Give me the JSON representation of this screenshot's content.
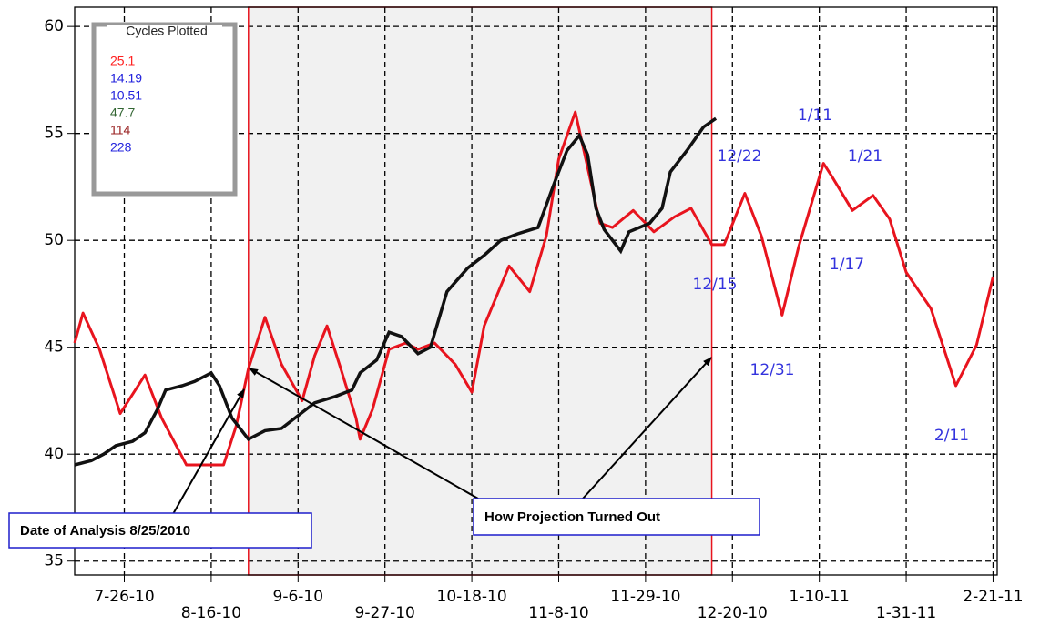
{
  "chart_data": {
    "type": "line",
    "xlim": [
      "7-14-10",
      "2-22-11"
    ],
    "ylim": [
      34.35,
      60.9
    ],
    "xticks": [
      "7-26-10",
      "8-16-10",
      "9-6-10",
      "9-27-10",
      "10-18-10",
      "11-8-10",
      "11-29-10",
      "12-20-10",
      "1-10-11",
      "1-31-11",
      "2-21-11"
    ],
    "yticks": [
      35,
      40,
      45,
      50,
      55,
      60
    ],
    "grid": true,
    "shaded_range": [
      "8-25-10",
      "12-15-10"
    ],
    "series": [
      {
        "color": "#e8141e",
        "x": [
          "7-14-10",
          "7-16-10",
          "7-20-10",
          "7-25-10",
          "7-31-10",
          "8-4-10",
          "8-10-10",
          "8-19-10",
          "8-22-10",
          "8-25-10",
          "8-29-10",
          "9-2-10",
          "9-7-10",
          "9-10-10",
          "9-13-10",
          "9-16-10",
          "9-20-10",
          "9-21-10",
          "9-24-10",
          "9-28-10",
          "10-2-10",
          "10-5-10",
          "10-9-10",
          "10-14-10",
          "10-18-10",
          "10-21-10",
          "10-27-10",
          "11-1-10",
          "11-5-10",
          "11-8-10",
          "11-12-10",
          "11-15-10",
          "11-18-10",
          "11-21-10",
          "11-26-10",
          "12-1-10",
          "12-6-10",
          "12-10-10",
          "12-15-10",
          "12-18-10",
          "12-23-10",
          "12-27-10",
          "1-1-11",
          "1-5-11",
          "1-11-11",
          "1-13-11",
          "1-18-11",
          "1-23-11",
          "1-27-11",
          "1-31-11",
          "2-6-11",
          "2-12-11",
          "2-17-11",
          "2-21-11"
        ],
        "values": [
          45.2,
          46.6,
          44.9,
          41.9,
          43.7,
          41.7,
          39.5,
          39.5,
          41.3,
          44.0,
          46.4,
          44.2,
          42.5,
          44.6,
          46.0,
          44.2,
          41.7,
          40.7,
          42.1,
          44.9,
          45.2,
          44.9,
          45.2,
          44.2,
          42.9,
          46.0,
          48.8,
          47.6,
          50.2,
          53.8,
          56.0,
          53.4,
          50.8,
          50.6,
          51.4,
          50.4,
          51.1,
          51.5,
          49.8,
          49.8,
          52.2,
          50.2,
          46.5,
          49.7,
          53.6,
          53.0,
          51.4,
          52.1,
          51.0,
          48.5,
          46.8,
          43.2,
          45.1,
          48.3
        ]
      },
      {
        "color": "#111111",
        "x": [
          "7-14-10",
          "7-18-10",
          "7-21-10",
          "7-24-10",
          "7-28-10",
          "7-31-10",
          "8-3-10",
          "8-5-10",
          "8-9-10",
          "8-12-10",
          "8-16-10",
          "8-18-10",
          "8-21-10",
          "8-25-10",
          "8-29-10",
          "9-2-10",
          "9-6-10",
          "9-10-10",
          "9-15-10",
          "9-19-10",
          "9-21-10",
          "9-25-10",
          "9-28-10",
          "10-1-10",
          "10-5-10",
          "10-8-10",
          "10-12-10",
          "10-17-10",
          "10-21-10",
          "10-25-10",
          "10-29-10",
          "11-3-10",
          "11-7-10",
          "11-10-10",
          "11-13-10",
          "11-15-10",
          "11-17-10",
          "11-19-10",
          "11-23-10",
          "11-25-10",
          "11-30-10",
          "12-3-10",
          "12-5-10",
          "12-9-10",
          "12-13-10",
          "12-16-10"
        ],
        "values": [
          39.5,
          39.7,
          40.0,
          40.4,
          40.6,
          41.0,
          42.1,
          43.0,
          43.2,
          43.4,
          43.8,
          43.2,
          41.7,
          40.7,
          41.1,
          41.2,
          41.8,
          42.4,
          42.7,
          43.0,
          43.8,
          44.4,
          45.7,
          45.5,
          44.7,
          45.0,
          47.6,
          48.7,
          49.3,
          50.0,
          50.3,
          50.6,
          52.7,
          54.2,
          54.9,
          54.0,
          51.5,
          50.5,
          49.5,
          50.4,
          50.8,
          51.5,
          53.2,
          54.2,
          55.3,
          55.7
        ]
      }
    ],
    "legend": {
      "title": "Cycles Plotted",
      "items": [
        {
          "label": "25.1",
          "color": "#ff2020"
        },
        {
          "label": "14.19",
          "color": "#2222dd"
        },
        {
          "label": "10.51",
          "color": "#2222dd"
        },
        {
          "label": "47.7",
          "color": "#336633"
        },
        {
          "label": "114",
          "color": "#992222"
        },
        {
          "label": "228",
          "color": "#2222dd"
        }
      ]
    },
    "annotations": [
      "1/11",
      "12/22",
      "1/21",
      "1/17",
      "12/15",
      "12/31",
      "2/11"
    ],
    "boxes": [
      "Date of Analysis  8/25/2010",
      "How Projection Turned Out"
    ]
  }
}
